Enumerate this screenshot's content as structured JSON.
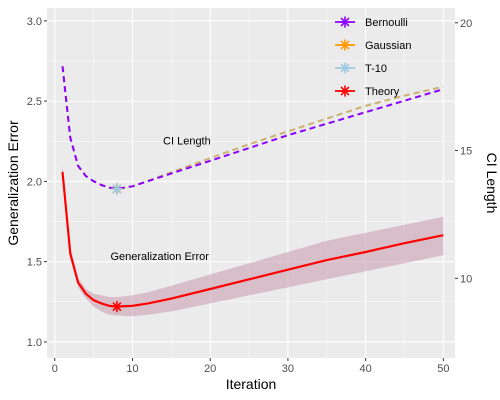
{
  "chart_data": {
    "type": "line",
    "xlabel": "Iteration",
    "ylabel": "Generalization Error",
    "ylabel_right": "CI Length",
    "xlim": [
      -1,
      51.5
    ],
    "ylim": [
      0.9,
      3.08
    ],
    "ylim_right": [
      6.88,
      20.58
    ],
    "x_ticks": [
      0,
      10,
      20,
      30,
      40,
      50
    ],
    "y_ticks": [
      1.0,
      1.5,
      2.0,
      2.5,
      3.0
    ],
    "y_ticks_right": [
      10,
      15,
      20
    ],
    "grid": true,
    "legend_position": "top-right",
    "annotations": [
      {
        "text": "CI Length",
        "x": 17,
        "y": 2.23
      },
      {
        "text": "Generalization Error",
        "x": 13.5,
        "y": 1.51
      }
    ],
    "highlight": {
      "x": 8,
      "marker": "asterisk"
    },
    "colors": {
      "Bernoulli": "#8b00ff",
      "Gaussian": "#ff9900",
      "T-10": "#9ecae1",
      "Theory": "#ff0000",
      "panel": "#ebebeb",
      "grid": "#ffffff"
    },
    "series": [
      {
        "name": "Bernoulli",
        "axis": "right",
        "style": "dashed",
        "x": [
          1,
          2,
          3,
          4,
          5,
          6,
          7,
          8,
          10,
          15,
          20,
          25,
          30,
          35,
          40,
          45,
          50
        ],
        "values": [
          18.3,
          15.5,
          14.4,
          14.0,
          13.8,
          13.65,
          13.55,
          13.5,
          13.6,
          14.1,
          14.6,
          15.1,
          15.6,
          16.05,
          16.5,
          16.95,
          17.4
        ]
      },
      {
        "name": "Gaussian",
        "axis": "right",
        "style": "dashed",
        "x": [
          1,
          2,
          3,
          4,
          5,
          6,
          7,
          8,
          10,
          15,
          20,
          25,
          30,
          35,
          40,
          45,
          50
        ],
        "values": [
          18.3,
          15.5,
          14.4,
          14.0,
          13.8,
          13.65,
          13.55,
          13.5,
          13.6,
          14.15,
          14.7,
          15.25,
          15.75,
          16.25,
          16.75,
          17.15,
          17.5
        ]
      },
      {
        "name": "T-10",
        "axis": "right",
        "style": "dashed",
        "x": [
          1,
          2,
          3,
          4,
          5,
          6,
          7,
          8,
          10,
          15,
          20,
          25,
          30,
          35,
          40,
          45,
          50
        ],
        "values": [
          18.3,
          15.5,
          14.4,
          14.0,
          13.8,
          13.65,
          13.55,
          13.5,
          13.6,
          14.15,
          14.7,
          15.25,
          15.75,
          16.25,
          16.75,
          17.15,
          17.5
        ]
      },
      {
        "name": "Theory",
        "axis": "left",
        "style": "solid",
        "x": [
          1,
          2,
          3,
          4,
          5,
          6,
          7,
          8,
          10,
          12,
          15,
          20,
          25,
          30,
          35,
          40,
          45,
          50
        ],
        "values": [
          2.06,
          1.55,
          1.37,
          1.3,
          1.26,
          1.24,
          1.225,
          1.22,
          1.225,
          1.24,
          1.27,
          1.33,
          1.39,
          1.45,
          1.51,
          1.56,
          1.615,
          1.665
        ],
        "band_lower": [
          2.02,
          1.52,
          1.34,
          1.27,
          1.22,
          1.19,
          1.17,
          1.165,
          1.16,
          1.17,
          1.19,
          1.24,
          1.29,
          1.34,
          1.39,
          1.44,
          1.49,
          1.54
        ],
        "band_upper": [
          2.1,
          1.59,
          1.4,
          1.33,
          1.3,
          1.29,
          1.28,
          1.28,
          1.29,
          1.31,
          1.35,
          1.42,
          1.49,
          1.56,
          1.63,
          1.68,
          1.73,
          1.78
        ]
      }
    ]
  }
}
